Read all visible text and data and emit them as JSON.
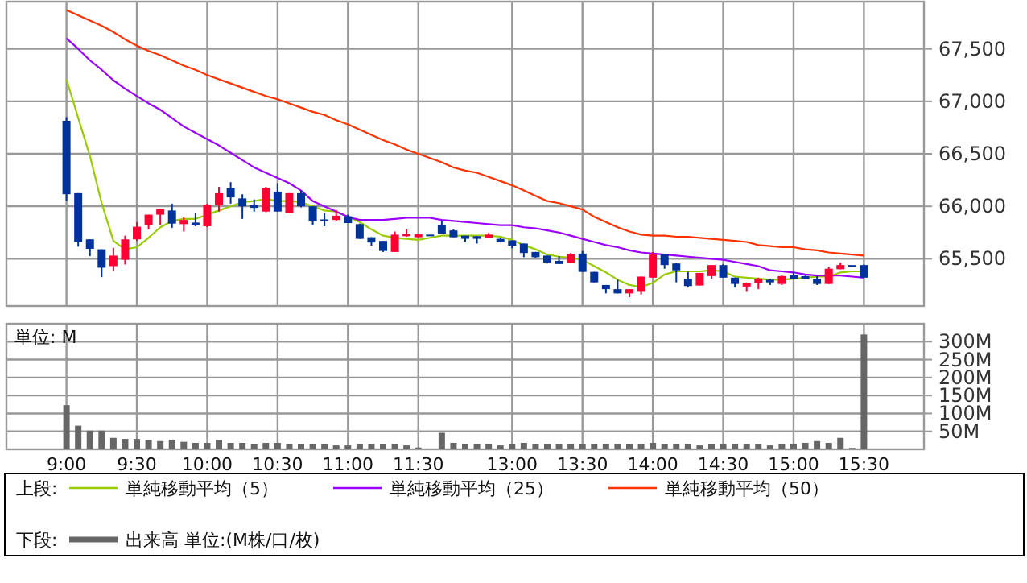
{
  "chart_data": [
    {
      "type": "candlestick",
      "categories": [
        null,
        null,
        null,
        null,
        null,
        null,
        null,
        null,
        null,
        null,
        null,
        null,
        null,
        null,
        null,
        null,
        null,
        null,
        null,
        null,
        null,
        null,
        null,
        null,
        null,
        null,
        null,
        null,
        null,
        null,
        null,
        null,
        null,
        null,
        null,
        null,
        null,
        null,
        null,
        null,
        null,
        null,
        null,
        null,
        null,
        null,
        null,
        null,
        null,
        null,
        null,
        null,
        null,
        null,
        null,
        null,
        null,
        null,
        null,
        null,
        null,
        null,
        null,
        null,
        null,
        null,
        null,
        null,
        null
      ],
      "ohlc": [
        [
          66815,
          66850,
          66050,
          66115
        ],
        [
          66125,
          66125,
          65615,
          65660
        ],
        [
          65685,
          65685,
          65525,
          65595
        ],
        [
          65590,
          65590,
          65325,
          65415
        ],
        [
          65430,
          65605,
          65385,
          65530
        ],
        [
          65490,
          65720,
          65445,
          65685
        ],
        [
          65685,
          65850,
          65670,
          65805
        ],
        [
          65820,
          65920,
          65780,
          65920
        ],
        [
          65920,
          65975,
          65820,
          65975
        ],
        [
          65960,
          66025,
          65795,
          65835
        ],
        [
          65830,
          65895,
          65760,
          65870
        ],
        [
          65845,
          65940,
          65810,
          65825
        ],
        [
          65810,
          66025,
          65800,
          66015
        ],
        [
          66010,
          66185,
          65950,
          66125
        ],
        [
          66175,
          66230,
          66025,
          66085
        ],
        [
          66075,
          66115,
          65880,
          66000
        ],
        [
          66010,
          66065,
          65950,
          65985
        ],
        [
          65950,
          66185,
          65945,
          66175
        ],
        [
          66140,
          66220,
          65950,
          65950
        ],
        [
          65935,
          66125,
          65935,
          66125
        ],
        [
          66125,
          66150,
          65990,
          66000
        ],
        [
          66000,
          66000,
          65820,
          65855
        ],
        [
          65875,
          65935,
          65810,
          65865
        ],
        [
          65870,
          65965,
          65860,
          65910
        ],
        [
          65905,
          65920,
          65840,
          65840
        ],
        [
          65830,
          65835,
          65690,
          65690
        ],
        [
          65705,
          65705,
          65625,
          65655
        ],
        [
          65670,
          65670,
          65565,
          65575
        ],
        [
          65565,
          65760,
          65565,
          65730
        ],
        [
          65715,
          65780,
          65710,
          65735
        ],
        [
          65705,
          65735,
          65705,
          65735
        ],
        [
          65730,
          65730,
          65730,
          65730
        ],
        [
          65820,
          65860,
          65735,
          65740
        ],
        [
          65770,
          65780,
          65705,
          65705
        ],
        [
          65720,
          65720,
          65660,
          65690
        ],
        [
          65715,
          65715,
          65645,
          65690
        ],
        [
          65695,
          65745,
          65695,
          65730
        ],
        [
          65690,
          65695,
          65655,
          65660
        ],
        [
          65675,
          65675,
          65600,
          65625
        ],
        [
          65645,
          65645,
          65515,
          65555
        ],
        [
          65565,
          65565,
          65510,
          65515
        ],
        [
          65530,
          65530,
          65455,
          65465
        ],
        [
          65480,
          65525,
          65450,
          65450
        ],
        [
          65460,
          65555,
          65460,
          65545
        ],
        [
          65550,
          65575,
          65375,
          65375
        ],
        [
          65375,
          65375,
          65275,
          65275
        ],
        [
          65250,
          65250,
          65170,
          65210
        ],
        [
          65210,
          65300,
          65170,
          65170
        ],
        [
          65170,
          65210,
          65135,
          65210
        ],
        [
          65185,
          65330,
          65160,
          65330
        ],
        [
          65320,
          65565,
          65320,
          65540
        ],
        [
          65540,
          65540,
          65405,
          65440
        ],
        [
          65455,
          65460,
          65275,
          65390
        ],
        [
          65310,
          65375,
          65225,
          65240
        ],
        [
          65245,
          65365,
          65245,
          65365
        ],
        [
          65335,
          65440,
          65310,
          65440
        ],
        [
          65440,
          65450,
          65320,
          65320
        ],
        [
          65320,
          65320,
          65225,
          65260
        ],
        [
          65235,
          65275,
          65185,
          65270
        ],
        [
          65270,
          65320,
          65210,
          65310
        ],
        [
          65300,
          65310,
          65250,
          65275
        ],
        [
          65260,
          65340,
          65250,
          65335
        ],
        [
          65345,
          65375,
          65305,
          65310
        ],
        [
          65335,
          65340,
          65305,
          65310
        ],
        [
          65310,
          65335,
          65250,
          65260
        ],
        [
          65260,
          65425,
          65260,
          65405
        ],
        [
          65400,
          65465,
          65400,
          65440
        ],
        [
          65440,
          65440,
          65440,
          65440
        ],
        [
          65440,
          65445,
          65320,
          65320
        ]
      ],
      "series": [
        {
          "name": "単純移動平均（5）",
          "type": "line",
          "color": "#99cc00",
          "values": [
            67210,
            66840,
            66480,
            66030,
            65670,
            65590,
            65610,
            65700,
            65800,
            65860,
            65880,
            65880,
            65920,
            65960,
            66000,
            66040,
            66050,
            66070,
            66050,
            66050,
            66040,
            66000,
            65960,
            65950,
            65900,
            65850,
            65780,
            65720,
            65700,
            65690,
            65680,
            65700,
            65720,
            65720,
            65720,
            65720,
            65720,
            65710,
            65680,
            65630,
            65590,
            65540,
            65520,
            65510,
            65490,
            65430,
            65370,
            65300,
            65250,
            65230,
            65270,
            65350,
            65380,
            65380,
            65380,
            65390,
            65380,
            65330,
            65320,
            65310,
            65300,
            65300,
            65310,
            65320,
            65330,
            65330,
            65370,
            65380,
            65380
          ]
        },
        {
          "name": "単純移動平均（25）",
          "type": "line",
          "color": "#9900ff",
          "values": [
            67600,
            67500,
            67390,
            67300,
            67200,
            67120,
            67050,
            66980,
            66920,
            66840,
            66760,
            66700,
            66640,
            66580,
            66510,
            66440,
            66370,
            66320,
            66270,
            66220,
            66150,
            66050,
            66000,
            65950,
            65900,
            65870,
            65870,
            65870,
            65880,
            65890,
            65890,
            65890,
            65870,
            65860,
            65850,
            65840,
            65830,
            65820,
            65820,
            65800,
            65790,
            65770,
            65750,
            65720,
            65690,
            65660,
            65630,
            65610,
            65580,
            65560,
            65550,
            65540,
            65530,
            65520,
            65510,
            65500,
            65490,
            65470,
            65450,
            65430,
            65390,
            65380,
            65370,
            65350,
            65340,
            65340,
            65340,
            65330,
            65320
          ]
        },
        {
          "name": "単純移動平均（50）",
          "type": "line",
          "color": "#ff3300",
          "values": [
            67870,
            67820,
            67770,
            67720,
            67660,
            67590,
            67530,
            67480,
            67440,
            67390,
            67340,
            67300,
            67250,
            67210,
            67170,
            67130,
            67090,
            67050,
            67020,
            66980,
            66940,
            66900,
            66870,
            66820,
            66780,
            66730,
            66680,
            66630,
            66590,
            66540,
            66500,
            66460,
            66420,
            66370,
            66340,
            66320,
            66280,
            66240,
            66200,
            66150,
            66100,
            66050,
            66030,
            66000,
            65970,
            65900,
            65850,
            65800,
            65760,
            65730,
            65720,
            65720,
            65710,
            65710,
            65700,
            65690,
            65680,
            65670,
            65660,
            65630,
            65620,
            65610,
            65610,
            65590,
            65580,
            65560,
            65550,
            65540,
            65530
          ]
        }
      ],
      "ylim": [
        65050,
        67950
      ],
      "yticks": [
        {
          "value": 65500,
          "label": "65,500"
        },
        {
          "value": 66000,
          "label": "66,000"
        },
        {
          "value": 66500,
          "label": "66,500"
        },
        {
          "value": 67000,
          "label": "67,000"
        },
        {
          "value": 67500,
          "label": "67,500"
        }
      ],
      "grid": true,
      "tick_labels": "y",
      "legend": "bottom",
      "legend_title": "上段:"
    },
    {
      "type": "bar",
      "categories": [
        "9:00",
        null,
        null,
        null,
        null,
        null,
        "9:30",
        null,
        null,
        null,
        null,
        null,
        "10:00",
        null,
        null,
        null,
        null,
        null,
        "10:30",
        null,
        null,
        null,
        null,
        null,
        "11:00",
        null,
        null,
        null,
        null,
        null,
        "11:30",
        null,
        null,
        null,
        null,
        null,
        null,
        null,
        "13:00",
        null,
        null,
        null,
        null,
        null,
        "13:30",
        null,
        null,
        null,
        null,
        null,
        "14:00",
        null,
        null,
        null,
        null,
        null,
        "14:30",
        null,
        null,
        null,
        null,
        null,
        "15:00",
        null,
        null,
        null,
        null,
        null,
        "15:30"
      ],
      "series": [
        {
          "name": "出来高 単位:(M株/口/枚)",
          "color": "#666666",
          "values": [
            123,
            66,
            52,
            52,
            32,
            29,
            29,
            27,
            23,
            27,
            21,
            18,
            18,
            27,
            18,
            18,
            14,
            18,
            18,
            14,
            14,
            14,
            14,
            11,
            11,
            14,
            14,
            14,
            14,
            11,
            5,
            null,
            46,
            18,
            14,
            14,
            14,
            11,
            14,
            18,
            14,
            14,
            14,
            14,
            14,
            14,
            14,
            14,
            14,
            14,
            18,
            14,
            14,
            14,
            11,
            14,
            14,
            14,
            14,
            14,
            11,
            14,
            14,
            18,
            23,
            18,
            32,
            4,
            320
          ]
        }
      ],
      "ylim": [
        0,
        350
      ],
      "yticks": [
        {
          "value": 50,
          "label": "50M"
        },
        {
          "value": 100,
          "label": "100M"
        },
        {
          "value": 150,
          "label": "150M"
        },
        {
          "value": 200,
          "label": "200M"
        },
        {
          "value": 250,
          "label": "250M"
        },
        {
          "value": 300,
          "label": "300M"
        }
      ],
      "grid": true,
      "legend": "bottom",
      "legend_title": "下段:",
      "annotations": [
        "単位: M"
      ]
    }
  ]
}
